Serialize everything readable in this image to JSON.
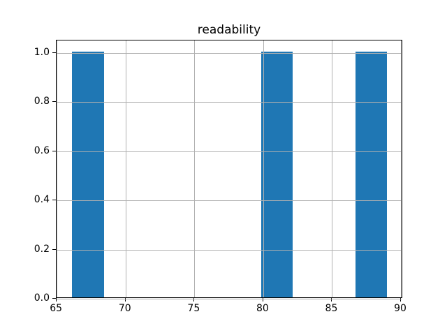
{
  "figure": {
    "background": "#ffffff"
  },
  "chart_data": {
    "type": "bar",
    "subtype": "histogram",
    "title": "readability",
    "xlabel": "",
    "ylabel": "",
    "bin_edges": [
      66.13,
      68.42,
      70.7,
      72.99,
      75.28,
      77.56,
      79.85,
      82.14,
      84.43,
      86.71,
      89.0
    ],
    "counts": [
      1,
      0,
      0,
      0,
      0,
      0,
      1,
      0,
      0,
      1
    ],
    "bars": [
      {
        "x_start": 66.13,
        "x_end": 68.42,
        "height": 1.0
      },
      {
        "x_start": 79.85,
        "x_end": 82.14,
        "height": 1.0
      },
      {
        "x_start": 86.71,
        "x_end": 89.0,
        "height": 1.0
      }
    ],
    "x_ticks": [
      65,
      70,
      75,
      80,
      85,
      90
    ],
    "x_tick_labels": [
      "65",
      "70",
      "75",
      "80",
      "85",
      "90"
    ],
    "y_ticks": [
      0.0,
      0.2,
      0.4,
      0.6,
      0.8,
      1.0
    ],
    "y_tick_labels": [
      "0.0",
      "0.2",
      "0.4",
      "0.6",
      "0.8",
      "1.0"
    ],
    "xlim": [
      64.99,
      90.15
    ],
    "ylim": [
      0,
      1.05
    ],
    "grid": true,
    "grid_above_bars": true,
    "legend": null,
    "colors": {
      "bar": "#1f77b4",
      "grid": "#b0b0b0",
      "spine": "#000000",
      "text": "#000000",
      "background": "#ffffff"
    }
  }
}
